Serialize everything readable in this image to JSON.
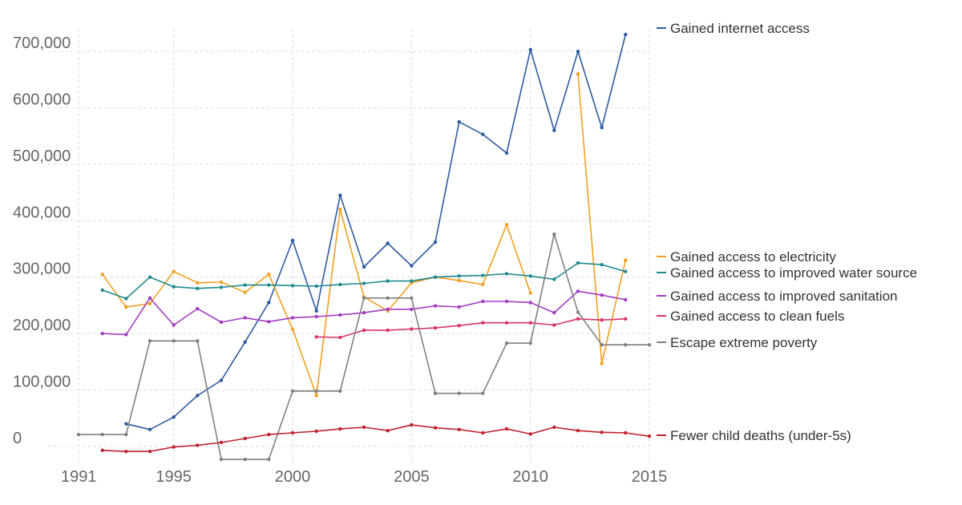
{
  "chart_data": {
    "type": "line",
    "x": [
      1991,
      1992,
      1993,
      1994,
      1995,
      1996,
      1997,
      1998,
      1999,
      2000,
      2001,
      2002,
      2003,
      2004,
      2005,
      2006,
      2007,
      2008,
      2009,
      2010,
      2011,
      2012,
      2013,
      2014,
      2015
    ],
    "xlim": [
      1991,
      2015
    ],
    "ylim": [
      -30000,
      740000
    ],
    "x_ticks": [
      {
        "value": 1991,
        "label": "1991"
      },
      {
        "value": 1995,
        "label": "1995"
      },
      {
        "value": 2000,
        "label": "2000"
      },
      {
        "value": 2005,
        "label": "2005"
      },
      {
        "value": 2010,
        "label": "2010"
      },
      {
        "value": 2015,
        "label": "2015"
      }
    ],
    "y_ticks": [
      {
        "value": 0,
        "label": "0"
      },
      {
        "value": 100000,
        "label": "100,000"
      },
      {
        "value": 200000,
        "label": "200,000"
      },
      {
        "value": 300000,
        "label": "300,000"
      },
      {
        "value": 400000,
        "label": "400,000"
      },
      {
        "value": 500000,
        "label": "500,000"
      },
      {
        "value": 600000,
        "label": "600,000"
      },
      {
        "value": 700000,
        "label": "700,000"
      }
    ],
    "grid": true,
    "legend_placement": "right, at line ends",
    "series": [
      {
        "name": "Gained internet access",
        "color": "#2c5aa0",
        "values": [
          null,
          null,
          40000,
          30000,
          52000,
          90000,
          117000,
          185000,
          255000,
          365000,
          240000,
          445000,
          318000,
          360000,
          320000,
          362000,
          575000,
          553000,
          520000,
          703000,
          560000,
          700000,
          565000,
          730000,
          null
        ]
      },
      {
        "name": "Gained access to electricity",
        "color": "#f0a020",
        "values": [
          null,
          305000,
          247000,
          253000,
          310000,
          290000,
          291000,
          273000,
          305000,
          208000,
          90000,
          420000,
          265000,
          240000,
          290000,
          300000,
          294000,
          287000,
          393000,
          272000,
          null,
          660000,
          147000,
          330000,
          null
        ]
      },
      {
        "name": "Gained access to improved water source",
        "color": "#1f8a8f",
        "values": [
          null,
          277000,
          262000,
          300000,
          283000,
          280000,
          282000,
          286000,
          286000,
          285000,
          284000,
          287000,
          289000,
          293000,
          293000,
          300000,
          302000,
          303000,
          306000,
          302000,
          296000,
          325000,
          322000,
          310000,
          null
        ]
      },
      {
        "name": "Gained access to improved sanitation",
        "color": "#a23cc2",
        "values": [
          null,
          200000,
          198000,
          263000,
          215000,
          244000,
          220000,
          228000,
          221000,
          228000,
          230000,
          233000,
          237000,
          243000,
          243000,
          249000,
          247000,
          257000,
          257000,
          255000,
          237000,
          275000,
          268000,
          260000,
          null
        ]
      },
      {
        "name": "Gained access to clean fuels",
        "color": "#d6336c",
        "values": [
          null,
          null,
          null,
          null,
          null,
          null,
          null,
          null,
          null,
          null,
          194000,
          193000,
          206000,
          206000,
          208000,
          210000,
          214000,
          219000,
          219000,
          219000,
          215000,
          226000,
          224000,
          226000,
          null
        ]
      },
      {
        "name": "Escape extreme poverty",
        "color": "#808080",
        "values": [
          21000,
          21000,
          21000,
          187000,
          187000,
          187000,
          -23000,
          -23000,
          -23000,
          98000,
          98000,
          98000,
          263000,
          263000,
          263000,
          94000,
          94000,
          94000,
          183000,
          183000,
          376000,
          238000,
          180000,
          180000,
          180000
        ]
      },
      {
        "name": "Fewer child deaths (under-5s)",
        "color": "#c0222e",
        "values": [
          null,
          -7000,
          -9000,
          -9000,
          -1000,
          2000,
          7000,
          14000,
          21000,
          24000,
          27000,
          31000,
          34000,
          28000,
          38000,
          33000,
          30000,
          24000,
          31000,
          22000,
          34000,
          28000,
          25000,
          24000,
          18000
        ]
      }
    ]
  }
}
